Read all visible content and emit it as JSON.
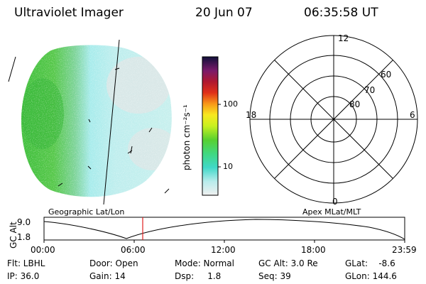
{
  "header": {
    "instrument": "Ultraviolet Imager",
    "date": "20 Jun 07",
    "time": "06:35:58 UT"
  },
  "colorbar": {
    "unit_label": "photon cm⁻²s⁻¹",
    "ticks": [
      "100",
      "10"
    ],
    "scale": "log"
  },
  "polar_plot": {
    "mlt_labels": {
      "top": "12",
      "left": "18",
      "right": "6",
      "bottom": "0"
    },
    "lat_labels": [
      "60",
      "70",
      "80"
    ]
  },
  "altitude_panel": {
    "left_title": "Geographic Lat/Lon",
    "right_title": "Apex MLat/MLT",
    "y_axis_label": "GC Alt",
    "y_ticks": [
      "9.0",
      "1.8"
    ],
    "x_ticks": [
      "00:00",
      "06:00",
      "12:00",
      "18:00",
      "23:59"
    ],
    "current_time_color": "#e02020",
    "curve_color": "#000000"
  },
  "status": {
    "flt": "Flt: LBHL",
    "ip": "IP: 36.0",
    "door": "Door: Open",
    "gain": "Gain: 14",
    "mode": "Mode: Normal",
    "dsp": "Dsp:     1.8",
    "gc_alt": "GC Alt: 3.0 Re",
    "seq": "Seq: 39",
    "glat": "GLat:    -8.6",
    "glon": "GLon: 144.6"
  },
  "colors": {
    "auroral_green": "#4ec83c",
    "glow_cyan": "#a6ecec",
    "haze_grey": "#d8e4e4"
  }
}
